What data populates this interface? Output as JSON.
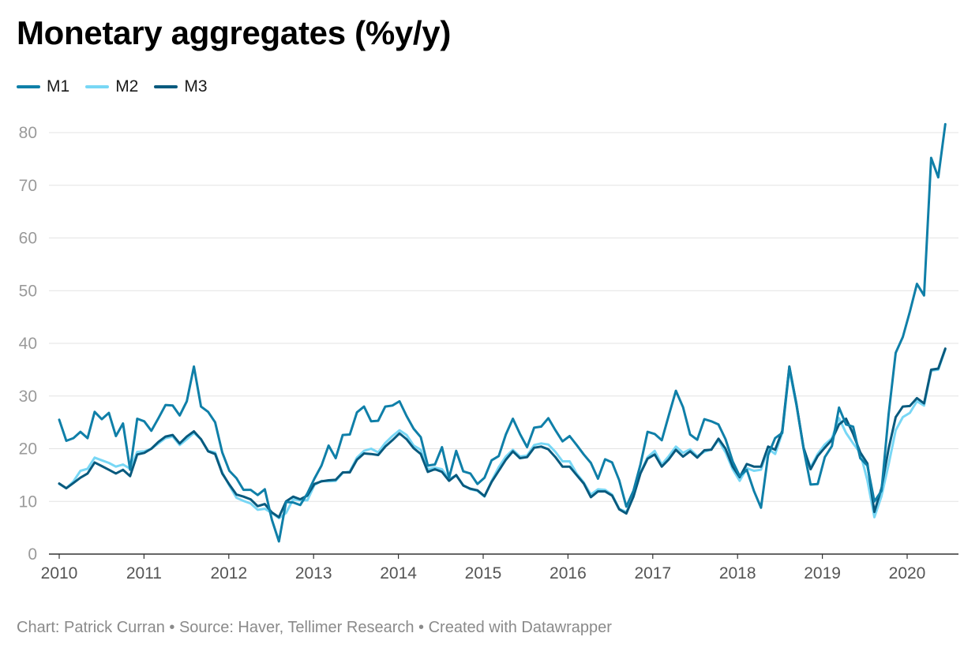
{
  "header": {
    "title": "Monetary aggregates (%y/y)"
  },
  "footer": {
    "credit": "Chart: Patrick Curran • Source: Haver, Tellimer Research • Created with Datawrapper"
  },
  "chart_data": {
    "type": "line",
    "title": "Monetary aggregates (%y/y)",
    "xlabel": "",
    "ylabel": "",
    "xlim": [
      2010,
      2020.45
    ],
    "ylim": [
      0,
      80
    ],
    "y_ticks": [
      0,
      10,
      20,
      30,
      40,
      50,
      60,
      70,
      80
    ],
    "x_ticks": [
      2010,
      2011,
      2012,
      2013,
      2014,
      2015,
      2016,
      2017,
      2018,
      2019,
      2020
    ],
    "grid": true,
    "legend_position": "top-left",
    "series": [
      {
        "name": "M1",
        "color": "#0f7fa8",
        "values": [
          25.5,
          21.5,
          22,
          23.2,
          22,
          27,
          25.6,
          26.8,
          22.4,
          24.8,
          16,
          25.7,
          25.2,
          23.4,
          25.8,
          28.3,
          28.2,
          26.3,
          29,
          35.6,
          28,
          27,
          25,
          19.3,
          15.8,
          14.4,
          12.2,
          12.2,
          11.2,
          12.3,
          6.5,
          2.4,
          9.9,
          9.8,
          9.3,
          11.5,
          14.3,
          16.8,
          20.6,
          18.2,
          22.6,
          22.7,
          26.9,
          28,
          25.2,
          25.3,
          28,
          28.2,
          29,
          26.2,
          23.8,
          22.2,
          16.8,
          17,
          20.3,
          14.5,
          19.6,
          15.7,
          15.3,
          13.3,
          14.5,
          17.8,
          18.6,
          22.7,
          25.7,
          22.8,
          20.3,
          24,
          24.2,
          25.8,
          23.5,
          21.4,
          22.4,
          20.7,
          18.9,
          17.3,
          14.3,
          18,
          17.4,
          14,
          9,
          12,
          17,
          23.2,
          22.8,
          21.6,
          26.4,
          31,
          27.9,
          22.7,
          21.7,
          25.6,
          25.2,
          24.6,
          21.8,
          17.6,
          14.8,
          16,
          12,
          8.8,
          18.8,
          22,
          23,
          35.5,
          28.5,
          20,
          13.2,
          13.3,
          18.4,
          20.5,
          27.8,
          24.6,
          24.2,
          18.2,
          16.8,
          10,
          12,
          26.5,
          38.2,
          41.2,
          46,
          51.3,
          49.1,
          75.2,
          71.5,
          81.6
        ]
      },
      {
        "name": "M2",
        "color": "#78d7f5",
        "values": [
          13.3,
          12.5,
          13.8,
          15.8,
          16.2,
          18.3,
          17.8,
          17.3,
          16.6,
          17,
          16.2,
          19.4,
          19.5,
          20,
          21,
          22,
          22.3,
          20.7,
          21.8,
          23,
          21.8,
          19.6,
          19.3,
          15.5,
          13,
          10.7,
          10.1,
          9.6,
          8.4,
          8.6,
          7.8,
          6.8,
          7.8,
          10.4,
          10.2,
          10.2,
          13.1,
          13.9,
          13.8,
          13.9,
          15.4,
          15.7,
          18.3,
          19.6,
          20,
          19.3,
          21.1,
          22.4,
          23.5,
          22.6,
          20.6,
          19.8,
          16.1,
          16.4,
          16.1,
          14.3,
          14.9,
          13.1,
          12.3,
          12,
          10.9,
          13.9,
          16.5,
          18.5,
          19.8,
          18.5,
          18.7,
          20.7,
          21,
          20.8,
          19.4,
          17.6,
          17.6,
          15.3,
          13.6,
          11.3,
          12.3,
          12.2,
          11.3,
          8.6,
          8,
          10.8,
          15.5,
          18.4,
          19.6,
          17,
          18.6,
          20.4,
          19.2,
          19.9,
          18.6,
          19.4,
          19.9,
          21.6,
          19.3,
          16.1,
          13.9,
          16.3,
          15.8,
          16,
          20,
          19,
          23,
          35,
          28.2,
          20,
          16.5,
          19,
          20.8,
          22,
          25.8,
          23,
          21,
          19.2,
          14,
          7,
          11,
          17,
          23.5,
          26,
          26.8,
          29,
          28.2,
          34.8,
          35,
          38.8
        ]
      },
      {
        "name": "M3",
        "color": "#085a7e",
        "values": [
          13.4,
          12.5,
          13.5,
          14.5,
          15.3,
          17.4,
          16.7,
          16,
          15.3,
          16,
          14.8,
          18.9,
          19.2,
          20,
          21.3,
          22.3,
          22.6,
          21,
          22.3,
          23.3,
          21.8,
          19.5,
          19,
          15.3,
          13.2,
          11.3,
          10.9,
          10.4,
          9.1,
          9.5,
          7.9,
          7,
          10,
          10.9,
          10.4,
          11.1,
          13.3,
          13.8,
          14,
          14.1,
          15.5,
          15.5,
          17.9,
          19.1,
          19,
          18.8,
          20.4,
          21.6,
          22.9,
          21.8,
          20.1,
          19,
          15.6,
          16.1,
          15.6,
          13.9,
          15,
          13,
          12.4,
          12.1,
          11,
          13.7,
          15.8,
          17.9,
          19.5,
          18.2,
          18.4,
          20.2,
          20.4,
          19.9,
          18.4,
          16.6,
          16.6,
          15,
          13.4,
          10.8,
          11.9,
          11.9,
          11.1,
          8.5,
          7.7,
          10.9,
          15.3,
          18.1,
          18.9,
          16.6,
          18,
          19.8,
          18.5,
          19.5,
          18.3,
          19.7,
          19.8,
          21.9,
          20,
          16.6,
          14.6,
          17.1,
          16.6,
          16.6,
          20.4,
          19.8,
          23.4,
          35.6,
          28.4,
          20.2,
          16.1,
          18.6,
          20.2,
          21.7,
          24.6,
          25.7,
          22.8,
          19.3,
          17.2,
          8,
          12.5,
          20,
          26,
          28,
          28.1,
          29.6,
          28.6,
          35,
          35.2,
          39
        ]
      }
    ]
  }
}
